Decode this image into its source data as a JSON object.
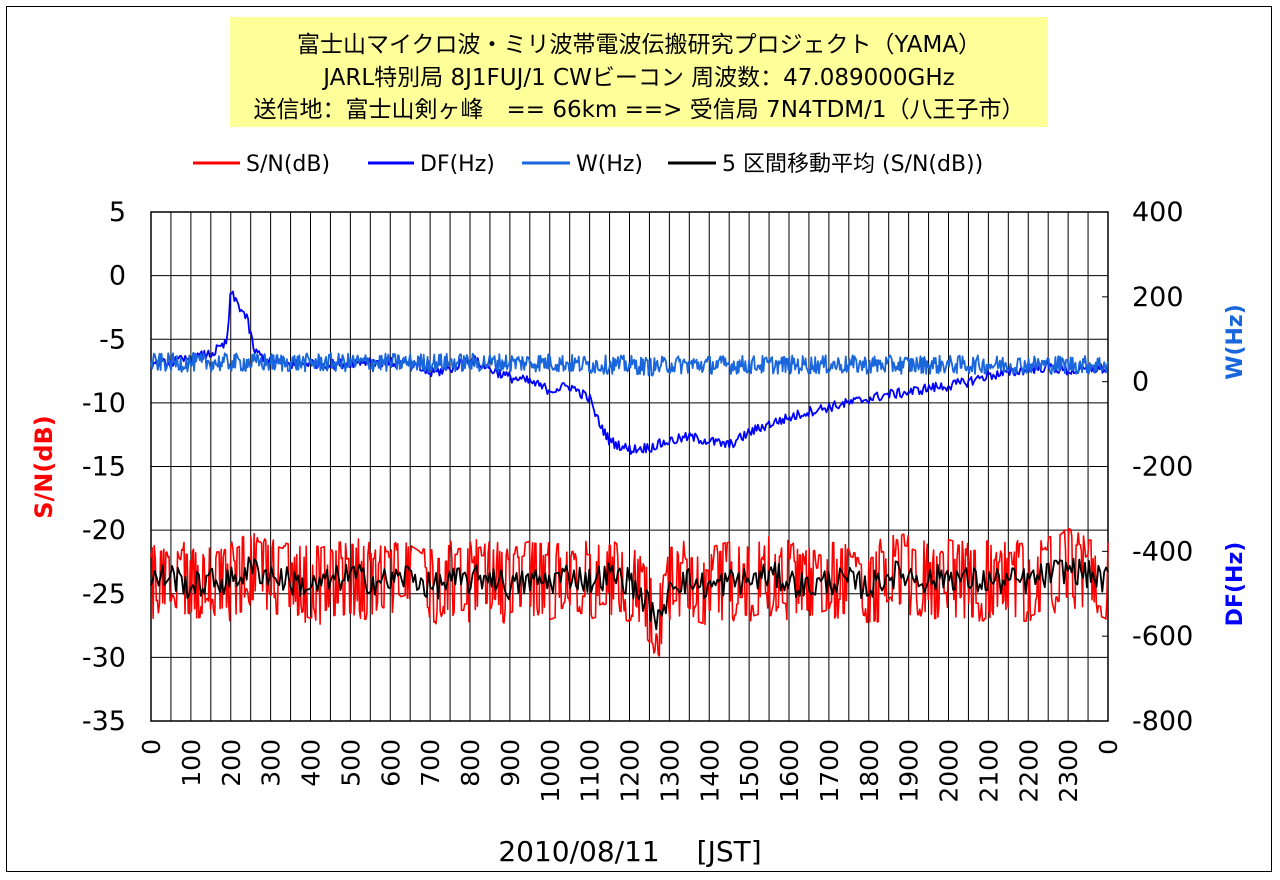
{
  "chart_data": {
    "type": "line",
    "title_lines": [
      "富士山マイクロ波・ミリ波帯電波伝搬研究プロジェクト（YAMA）",
      "JARL特別局 8J1FUJ/1 CWビーコン 周波数：47.089000GHz",
      "送信地：富士山剣ヶ峰　== 66km ==> 受信局 7N4TDM/1（八王子市）"
    ],
    "legend": [
      "S/N(dB)",
      "DF(Hz)",
      "W(Hz)",
      "5 区間移動平均 (S/N(dB))"
    ],
    "xlabel": "2010/08/11　 [JST]",
    "x_ticks": [
      "0",
      "100",
      "200",
      "300",
      "400",
      "500",
      "600",
      "700",
      "800",
      "900",
      "1000",
      "1100",
      "1200",
      "1300",
      "1400",
      "1500",
      "1600",
      "1700",
      "1800",
      "1900",
      "2000",
      "2100",
      "2200",
      "2300",
      "0"
    ],
    "ylabel_left": "S/N(dB)",
    "ylim_left": [
      -35,
      5
    ],
    "y_ticks_left": [
      "5",
      "0",
      "-5",
      "-10",
      "-15",
      "-20",
      "-25",
      "-30",
      "-35"
    ],
    "ylabel_right_upper": "W(Hz)",
    "ylabel_right_lower": "DF(Hz)",
    "ylim_right": [
      -800,
      400
    ],
    "y_ticks_right": [
      "400",
      "200",
      "0",
      "-200",
      "-400",
      "-600",
      "-800"
    ],
    "series": [
      {
        "name": "S/N(dB)",
        "axis": "left",
        "color": "#ff0000",
        "hours": [
          0,
          0.5,
          1,
          1.5,
          2,
          2.5,
          3,
          3.5,
          4,
          4.5,
          5,
          5.5,
          6,
          6.5,
          7,
          7.5,
          8,
          8.5,
          9,
          9.5,
          10,
          10.5,
          11,
          11.5,
          12,
          12.5,
          12.8,
          13,
          13.5,
          14,
          14.5,
          15,
          15.5,
          16,
          16.5,
          17,
          17.5,
          18,
          18.5,
          19,
          19.5,
          20,
          20.5,
          21,
          21.5,
          22,
          22.5,
          23,
          23.5,
          24
        ],
        "values": [
          -24,
          -23.5,
          -24.5,
          -24,
          -24,
          -23,
          -23.5,
          -24,
          -24.5,
          -24,
          -23.5,
          -24,
          -24,
          -23.5,
          -24.5,
          -24,
          -24,
          -23.5,
          -24.5,
          -24,
          -24,
          -23.5,
          -24,
          -23.5,
          -24,
          -26,
          -27.5,
          -24,
          -24,
          -24.5,
          -24,
          -24,
          -23.5,
          -24,
          -24.5,
          -24,
          -24,
          -24.5,
          -23.5,
          -23.5,
          -24,
          -23.5,
          -24,
          -24,
          -24,
          -24,
          -23.5,
          -23,
          -23.5,
          -24
        ]
      },
      {
        "name": "5 区間移動平均 (S/N(dB))",
        "axis": "left",
        "color": "#000000",
        "hours": [
          0,
          0.5,
          1,
          1.5,
          2,
          2.5,
          3,
          3.5,
          4,
          4.5,
          5,
          5.5,
          6,
          6.5,
          7,
          7.5,
          8,
          8.5,
          9,
          9.5,
          10,
          10.5,
          11,
          11.5,
          12,
          12.5,
          12.8,
          13,
          13.5,
          14,
          14.5,
          15,
          15.5,
          16,
          16.5,
          17,
          17.5,
          18,
          18.5,
          19,
          19.5,
          20,
          20.5,
          21,
          21.5,
          22,
          22.5,
          23,
          23.5,
          24
        ],
        "values": [
          -24,
          -23.5,
          -24.5,
          -24,
          -24,
          -23,
          -23.5,
          -24,
          -24.5,
          -24,
          -23.5,
          -24,
          -24,
          -23.5,
          -24.5,
          -24,
          -24,
          -23.5,
          -24.5,
          -24,
          -24,
          -23.5,
          -24,
          -23.5,
          -24,
          -26,
          -27.5,
          -24,
          -24,
          -24.5,
          -24,
          -24,
          -23.5,
          -24,
          -24.5,
          -24,
          -24,
          -24.5,
          -23.5,
          -23.5,
          -24,
          -23.5,
          -24,
          -24,
          -24,
          -24,
          -23.5,
          -23,
          -23.5,
          -24
        ]
      },
      {
        "name": "DF(Hz)",
        "axis": "right",
        "color": "#0000ff",
        "hours": [
          0,
          0.5,
          1,
          1.5,
          1.9,
          2,
          2.2,
          2.4,
          2.6,
          3,
          3.5,
          4,
          4.5,
          5,
          5.5,
          6,
          6.5,
          7,
          7.5,
          8,
          8.5,
          9,
          9.5,
          10,
          10.5,
          11,
          11.2,
          11.5,
          12,
          12.5,
          13,
          13.5,
          14,
          14.5,
          15,
          15.5,
          16,
          16.5,
          17,
          17.5,
          18,
          18.5,
          19,
          19.5,
          20,
          20.5,
          21,
          21.5,
          22,
          22.5,
          23,
          23.5,
          24
        ],
        "values": [
          40,
          45,
          55,
          65,
          90,
          210,
          180,
          150,
          70,
          50,
          40,
          45,
          40,
          45,
          50,
          45,
          40,
          20,
          30,
          55,
          30,
          10,
          0,
          -20,
          -10,
          -40,
          -90,
          -140,
          -160,
          -155,
          -140,
          -130,
          -140,
          -150,
          -120,
          -100,
          -85,
          -70,
          -60,
          -50,
          -40,
          -30,
          -25,
          -15,
          -10,
          0,
          15,
          20,
          30,
          35,
          25,
          30,
          30
        ]
      },
      {
        "name": "W(Hz)",
        "axis": "right",
        "color": "#1a66dd",
        "hours": [
          0,
          1,
          2,
          3,
          4,
          5,
          6,
          7,
          8,
          9,
          10,
          11,
          12,
          12.6,
          13,
          14,
          15,
          16,
          17,
          18,
          19,
          20,
          21,
          22,
          23,
          24
        ],
        "values": [
          45,
          45,
          45,
          45,
          45,
          45,
          45,
          45,
          45,
          45,
          45,
          40,
          40,
          35,
          40,
          40,
          40,
          40,
          40,
          40,
          40,
          40,
          40,
          40,
          40,
          40
        ]
      }
    ]
  }
}
